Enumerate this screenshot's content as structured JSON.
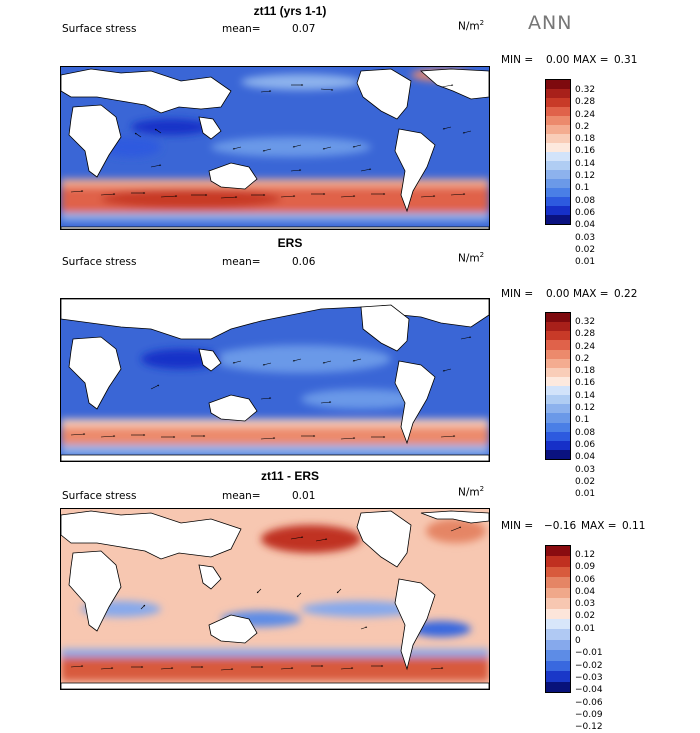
{
  "season": "ANN",
  "colors": {
    "seq": [
      "#0a1280",
      "#1630c8",
      "#2d5adf",
      "#4a7fe6",
      "#6b99e8",
      "#8db2ed",
      "#b0cdf3",
      "#d2e3fa",
      "#fde9de",
      "#f9cdb8",
      "#f4ac90",
      "#ec8a6c",
      "#e0624a",
      "#c83a28",
      "#a8201a",
      "#7e0a0e"
    ],
    "div": [
      "#08127a",
      "#1a38c8",
      "#3968df",
      "#5d8ce6",
      "#86a9ec",
      "#b0c9f3",
      "#d8e6fa",
      "#fce5da",
      "#f7c7b1",
      "#f0a88a",
      "#e58565",
      "#d85a3c",
      "#c03020",
      "#8a0c10"
    ]
  },
  "panels": [
    {
      "title": "zt11 (yrs 1-1)",
      "label": "Surface stress",
      "mean_label": "mean=",
      "mean": "0.07",
      "unit": "N/m",
      "unit_sup": "2",
      "min_label": "MIN =",
      "min": "0.00",
      "max_label": "MAX =",
      "max": "0.31",
      "scheme": "seq",
      "ticks": [
        "0.32",
        "0.28",
        "0.24",
        "0.2",
        "0.18",
        "0.16",
        "0.14",
        "0.12",
        "0.1",
        "0.08",
        "0.06",
        "0.04",
        "0.03",
        "0.02",
        "0.01"
      ]
    },
    {
      "title": "ERS",
      "label": "Surface stress",
      "mean_label": "mean=",
      "mean": "0.06",
      "unit": "N/m",
      "unit_sup": "2",
      "min_label": "MIN =",
      "min": "0.00",
      "max_label": "MAX =",
      "max": "0.22",
      "scheme": "seq",
      "ticks": [
        "0.32",
        "0.28",
        "0.24",
        "0.2",
        "0.18",
        "0.16",
        "0.14",
        "0.12",
        "0.1",
        "0.08",
        "0.06",
        "0.04",
        "0.03",
        "0.02",
        "0.01"
      ]
    },
    {
      "title": "zt11 - ERS",
      "label": "Surface stress",
      "mean_label": "mean=",
      "mean": "0.01",
      "unit": "N/m",
      "unit_sup": "2",
      "min_label": "MIN =",
      "min": "−0.16",
      "max_label": "MAX =",
      "max": "0.11",
      "scheme": "div",
      "ticks": [
        "0.12",
        "0.09",
        "0.06",
        "0.04",
        "0.03",
        "0.02",
        "0.01",
        "0",
        "−0.01",
        "−0.02",
        "−0.03",
        "−0.04",
        "−0.06",
        "−0.09",
        "−0.12"
      ]
    }
  ]
}
